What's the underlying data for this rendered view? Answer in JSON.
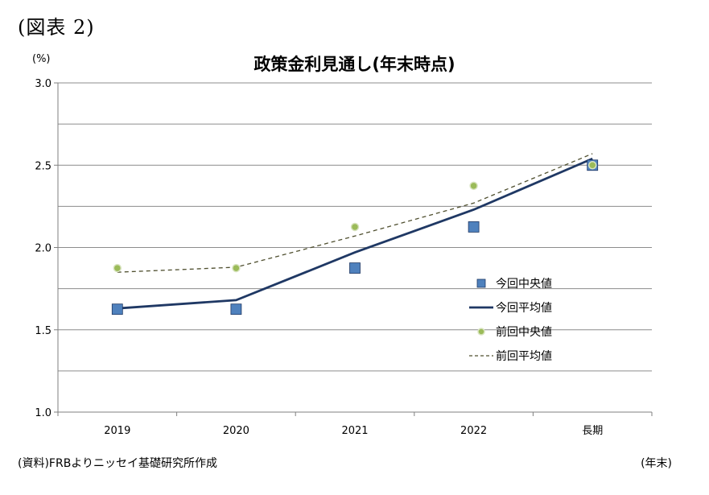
{
  "figure_label": "(図表 2)",
  "unit_label": "(%)",
  "source_note": "(資料)FRBよりニッセイ基礎研究所作成",
  "x_unit_label": "(年末)",
  "chart_data": {
    "type": "line",
    "title": "政策金利見通し(年末時点)",
    "xlabel": "",
    "ylabel": "",
    "categories": [
      "2019",
      "2020",
      "2021",
      "2022",
      "長期"
    ],
    "ylim": [
      1.0,
      3.0
    ],
    "yticks": [
      "1.0",
      "1.5",
      "2.0",
      "2.5",
      "3.0"
    ],
    "grid": true,
    "legend_position": "right",
    "series": [
      {
        "name": "今回中央値",
        "kind": "marker-square",
        "color": "#4F81BD",
        "values": [
          1.625,
          1.625,
          1.875,
          2.125,
          2.5
        ]
      },
      {
        "name": "今回平均値",
        "kind": "solid-line",
        "color": "#1F3864",
        "values": [
          1.63,
          1.68,
          1.97,
          2.23,
          2.54
        ]
      },
      {
        "name": "前回中央値",
        "kind": "marker-dot",
        "color": "#9BBB59",
        "values": [
          1.875,
          1.875,
          2.125,
          2.375,
          2.5
        ]
      },
      {
        "name": "前回平均値",
        "kind": "dashed-line",
        "color": "#4F4F2F",
        "values": [
          1.85,
          1.88,
          2.07,
          2.27,
          2.57
        ]
      }
    ]
  }
}
